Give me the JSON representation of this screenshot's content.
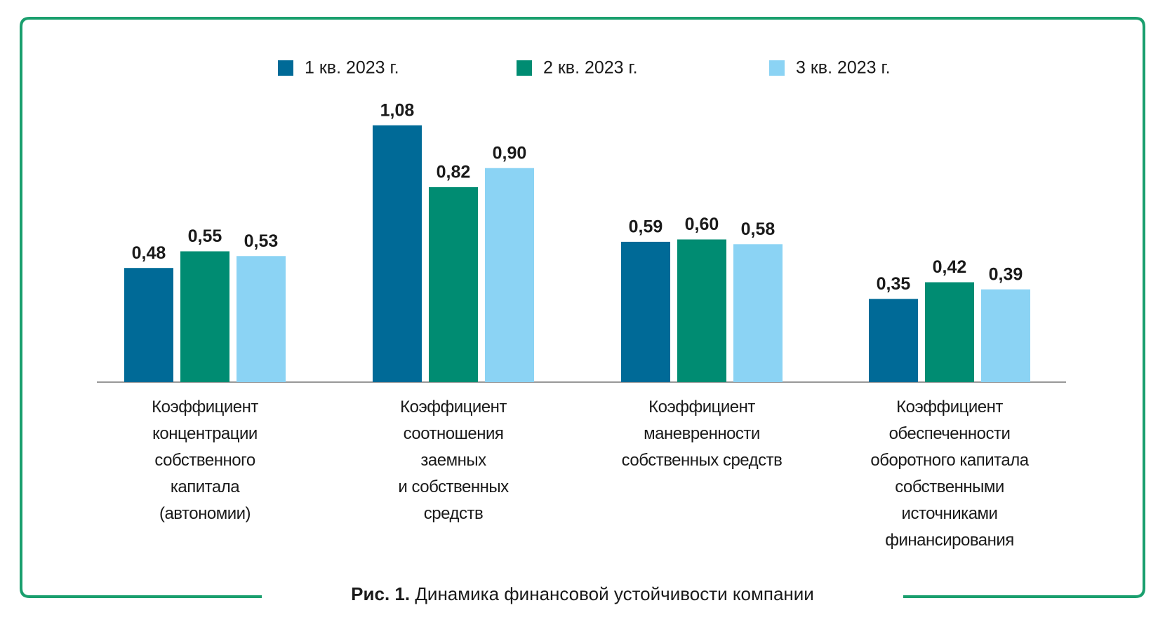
{
  "chart_data": {
    "type": "bar",
    "categories": [
      "Коэффициент\nконцентрации\nсобственного\nкапитала\n(автономии)",
      "Коэффициент\nсоотношения\nзаемных\nи собственных\nсредств",
      "Коэффициент\nманевренности\nсобственных средств",
      "Коэффициент\nобеспеченности\nоборотного капитала\nсобственными\nисточниками\nфинансирования"
    ],
    "series": [
      {
        "name": "1 кв. 2023 г.",
        "color": "#006a97",
        "values": [
          0.48,
          1.08,
          0.59,
          0.35
        ],
        "value_labels": [
          "0,48",
          "1,08",
          "0,59",
          "0,35"
        ]
      },
      {
        "name": "2 кв. 2023 г.",
        "color": "#008c72",
        "values": [
          0.55,
          0.82,
          0.6,
          0.42
        ],
        "value_labels": [
          "0,55",
          "0,82",
          "0,60",
          "0,42"
        ]
      },
      {
        "name": "3 кв. 2023 г.",
        "color": "#8bd3f4",
        "values": [
          0.53,
          0.9,
          0.58,
          0.39
        ],
        "value_labels": [
          "0,53",
          "0,90",
          "0,58",
          "0,39"
        ]
      }
    ],
    "ylim": [
      0,
      1.2
    ],
    "grid": false,
    "legend": "top",
    "caption_label": "Рис. 1.",
    "caption_text": "Динамика финансовой устойчивости компании"
  }
}
